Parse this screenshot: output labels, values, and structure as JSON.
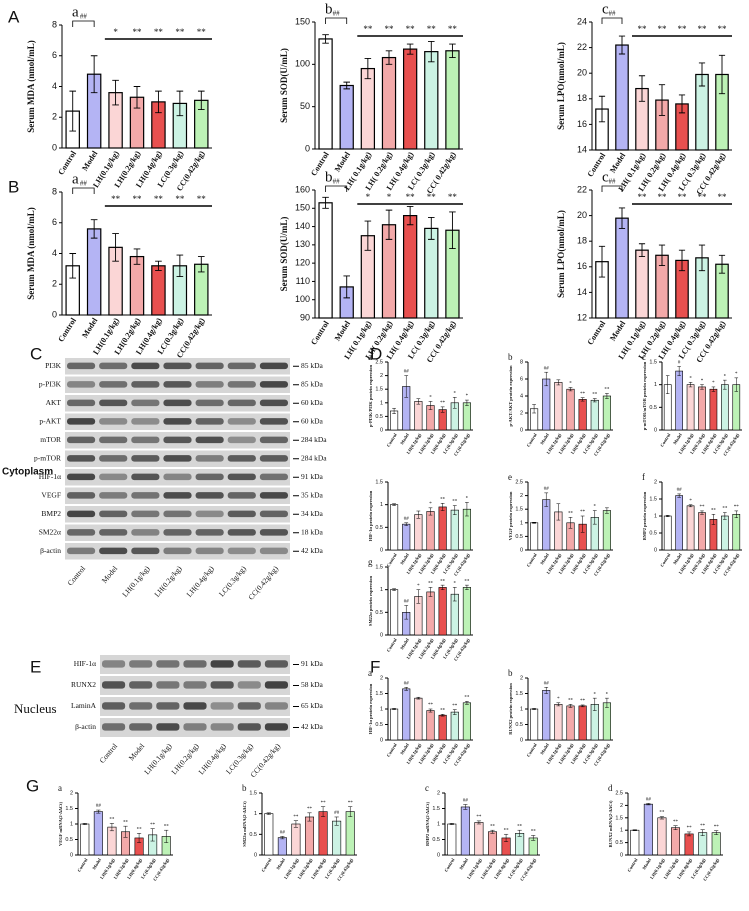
{
  "panel_letters": [
    "A",
    "B",
    "C",
    "D",
    "E",
    "F",
    "G"
  ],
  "bar_colors": [
    "#ffffff",
    "#b4b4f4",
    "#fbd6d6",
    "#f3a9a9",
    "#e8504f",
    "#ccf3e4",
    "#bdf2b6"
  ],
  "blots": [
    {
      "side": "Cytoplasm",
      "rows": [
        {
          "name": "PI3K",
          "kda": "85 kDa"
        },
        {
          "name": "p-PI3K",
          "kda": "85 kDa"
        },
        {
          "name": "AKT",
          "kda": "60 kDa"
        },
        {
          "name": "p-AKT",
          "kda": "60 kDa"
        },
        {
          "name": "mTOR",
          "kda": "284 kDa"
        },
        {
          "name": "p-mTOR",
          "kda": "284 kDa"
        },
        {
          "name": "HIF-1α",
          "kda": "91 kDa"
        },
        {
          "name": "VEGF",
          "kda": "35 kDa"
        },
        {
          "name": "BMP2",
          "kda": "34 kDa"
        },
        {
          "name": "SM22α",
          "kda": "18 kDa"
        },
        {
          "name": "β-actin",
          "kda": "42 kDa"
        }
      ],
      "columns": [
        "Control",
        "Model",
        "LH(0.1g/kg)",
        "LH(0.2g/kg)",
        "LH(0.4g/kg)",
        "LC(0.3g/kg)",
        "CC(0.42g/kg)"
      ]
    },
    {
      "side": "Nucleus",
      "rows": [
        {
          "name": "HIF-1α",
          "kda": "91 kDa"
        },
        {
          "name": "RUNX2",
          "kda": "58 kDa"
        },
        {
          "name": "LaminA",
          "kda": "65 kDa"
        },
        {
          "name": "β-actin",
          "kda": "42 kDa"
        }
      ],
      "columns": [
        "Control",
        "Model",
        "LH(0.1g/kg)",
        "LH(0.2g/kg)",
        "LH(0.4g/kg)",
        "LC(0.3g/kg)",
        "CC(0.42g/kg)"
      ]
    }
  ],
  "chart_data": [
    {
      "type": "bar",
      "label": "a",
      "ylabel": "Serum MDA (nmol/mL)",
      "categories": [
        "Control",
        "Model",
        "LH(0.1g/kg)",
        "LH(0.2g/kg)",
        "LH(0.4g/kg)",
        "LC(0.3g/kg)",
        "CC(0.42g/kg)"
      ],
      "values": [
        2.4,
        4.8,
        3.6,
        3.3,
        3.0,
        2.9,
        3.1
      ],
      "errors": [
        1.3,
        1.2,
        0.8,
        0.7,
        0.7,
        0.8,
        0.6
      ],
      "ylim": [
        0,
        8
      ],
      "yticks": [
        0,
        2,
        4,
        6,
        8
      ],
      "bracket": "##",
      "sig": [
        null,
        null,
        "*",
        "**",
        "**",
        "**",
        "**"
      ]
    },
    {
      "type": "bar",
      "label": "b",
      "ylabel": "Serum SOD(U/mL)",
      "categories": [
        "Control",
        "Model",
        "LH( 0.1g/kg)",
        "LH( 0.2g/kg)",
        "LH( 0.4g/kg)",
        "LC( 0.3g/kg)",
        "CC( 0.42g/kg)"
      ],
      "values": [
        130,
        75,
        95,
        108,
        118,
        115,
        116
      ],
      "errors": [
        5,
        4,
        12,
        8,
        6,
        12,
        8
      ],
      "ylim": [
        0,
        150
      ],
      "yticks": [
        0,
        50,
        100,
        150
      ],
      "bracket": "##",
      "sig": [
        null,
        null,
        "**",
        "**",
        "**",
        "**",
        "**"
      ]
    },
    {
      "type": "bar",
      "label": "c",
      "ylabel": "Serum LPO(nmol/mL)",
      "categories": [
        "Control",
        "Model",
        "LH( 0.1g/kg)",
        "LH( 0.2g/kg)",
        "LH( 0.4g/kg)",
        "LC( 0.3g/kg)",
        "CC( 0.42g/kg)"
      ],
      "values": [
        17.2,
        22.2,
        18.8,
        17.9,
        17.6,
        19.9,
        19.9
      ],
      "errors": [
        1.0,
        0.7,
        1.0,
        1.2,
        0.7,
        0.9,
        1.5
      ],
      "ylim": [
        14,
        24
      ],
      "yticks": [
        14,
        16,
        18,
        20,
        22,
        24
      ],
      "bracket": "##",
      "sig": [
        null,
        null,
        "**",
        "**",
        "**",
        "**",
        "**"
      ]
    },
    {
      "type": "bar",
      "label": "a",
      "ylabel": "Serum MDA (nmol/mL)",
      "categories": [
        "Control",
        "Model",
        "LH(0.1g/kg)",
        "LH(0.2g/kg)",
        "LH(0.4g/kg)",
        "LC(0.3g/kg)",
        "CC(0.42g/kg)"
      ],
      "values": [
        3.2,
        5.6,
        4.4,
        3.8,
        3.2,
        3.2,
        3.3
      ],
      "errors": [
        0.8,
        0.6,
        0.9,
        0.5,
        0.3,
        0.7,
        0.5
      ],
      "ylim": [
        0,
        8
      ],
      "yticks": [
        0,
        2,
        4,
        6,
        8
      ],
      "bracket": "##",
      "sig": [
        null,
        null,
        "**",
        "**",
        "**",
        "**",
        "**"
      ]
    },
    {
      "type": "bar",
      "label": "b",
      "ylabel": "Serum SOD(U/mL)",
      "categories": [
        "Control",
        "Model",
        "LH( 0.1g/kg)",
        "LH( 0.2g/kg)",
        "LH( 0.4g/kg)",
        "LC( 0.3g/kg)",
        "CC( 0.42g/kg)"
      ],
      "values": [
        153,
        107,
        135,
        141,
        146,
        139,
        138
      ],
      "errors": [
        3,
        6,
        8,
        8,
        5,
        6,
        10
      ],
      "ylim": [
        90,
        160
      ],
      "yticks": [
        90,
        100,
        110,
        120,
        130,
        140,
        150,
        160
      ],
      "bracket": "##",
      "sig": [
        null,
        null,
        "*",
        "*",
        "**",
        "**",
        "**"
      ]
    },
    {
      "type": "bar",
      "label": "c",
      "ylabel": "Serum LPO(nmol/mL)",
      "categories": [
        "Control",
        "Model",
        "LH( 0.1g/kg)",
        "LH( 0.2g/kg)",
        "LH( 0.4g/kg)",
        "LC( 0.3g/kg)",
        "CC( 0.42g/kg)"
      ],
      "values": [
        16.4,
        19.8,
        17.3,
        16.9,
        16.5,
        16.7,
        16.2
      ],
      "errors": [
        1.2,
        0.8,
        0.5,
        0.8,
        0.8,
        1.0,
        0.7
      ],
      "ylim": [
        12,
        22
      ],
      "yticks": [
        12,
        14,
        16,
        18,
        20,
        22
      ],
      "bracket": "##",
      "sig": [
        null,
        null,
        "**",
        "**",
        "**",
        "**",
        "**"
      ]
    },
    {
      "type": "bar",
      "label": "a",
      "ylabel": "p-PI3K/PI3K protein expression",
      "categories": [
        "Control",
        "Model",
        "LH(0.1g/kg)",
        "LH(0.2g/kg)",
        "LH(0.4g/kg)",
        "LC(0.3g/kg)",
        "CC(0.42g/kg)"
      ],
      "values": [
        0.7,
        1.6,
        1.05,
        0.9,
        0.75,
        1.0,
        1.0
      ],
      "errors": [
        0.1,
        0.4,
        0.1,
        0.15,
        0.1,
        0.2,
        0.1
      ],
      "ylim": [
        0,
        2.5
      ],
      "yticks": [
        0,
        0.5,
        1,
        1.5,
        2,
        2.5
      ],
      "sig": [
        null,
        "##",
        null,
        "*",
        "**",
        "*",
        "*"
      ]
    },
    {
      "type": "bar",
      "label": "b",
      "ylabel": "p-AKT/AKT protein expression",
      "categories": [
        "Control",
        "Model",
        "LH(0.1g/kg)",
        "LH(0.2g/kg)",
        "LH(0.4g/kg)",
        "LC(0.3g/kg)",
        "CC(0.42g/kg)"
      ],
      "values": [
        2.5,
        6.0,
        5.6,
        4.8,
        3.6,
        3.5,
        4.0
      ],
      "errors": [
        0.5,
        0.8,
        0.3,
        0.2,
        0.2,
        0.2,
        0.3
      ],
      "ylim": [
        0,
        8
      ],
      "yticks": [
        0,
        2,
        4,
        6,
        8
      ],
      "sig": [
        null,
        "##",
        null,
        "*",
        "**",
        "**",
        "**"
      ]
    },
    {
      "type": "bar",
      "label": "c",
      "ylabel": "p-mTOR/mTOR protein expression",
      "categories": [
        "Control",
        "Model",
        "LH(0.1g/kg)",
        "LH(0.2g/kg)",
        "LH(0.4g/kg)",
        "LC(0.3g/kg)",
        "CC(0.42g/kg)"
      ],
      "values": [
        1.0,
        1.3,
        1.0,
        0.95,
        0.9,
        1.0,
        1.0
      ],
      "errors": [
        0.2,
        0.1,
        0.05,
        0.05,
        0.05,
        0.1,
        0.15
      ],
      "ylim": [
        0,
        1.5
      ],
      "yticks": [
        0,
        0.5,
        1,
        1.5
      ],
      "sig": [
        null,
        "#",
        "*",
        "*",
        "*",
        "*",
        "*"
      ]
    },
    {
      "type": "bar",
      "label": null,
      "ylabel": "HIF-1α protein expression",
      "categories": [
        "Control",
        "Model",
        "LH(0.1g/kg)",
        "LH(0.2g/kg)",
        "LH(0.4g/kg)",
        "LC(0.3g/kg)",
        "CC(0.42g/kg)"
      ],
      "values": [
        1.0,
        0.57,
        0.78,
        0.85,
        0.95,
        0.88,
        0.9
      ],
      "errors": [
        0.02,
        0.03,
        0.08,
        0.08,
        0.08,
        0.1,
        0.15
      ],
      "ylim": [
        0,
        1.5
      ],
      "yticks": [
        0,
        0.5,
        1,
        1.5
      ],
      "sig": [
        null,
        "##",
        null,
        "*",
        "**",
        "**",
        "*"
      ]
    },
    {
      "type": "bar",
      "label": "e",
      "ylabel": "VEGF protein expression",
      "categories": [
        "Control",
        "Model",
        "LH(0.1g/kg)",
        "LH(0.2g/kg)",
        "LH(0.4g/kg)",
        "LC(0.3g/kg)",
        "CC(0.42g/kg)"
      ],
      "values": [
        1.0,
        1.85,
        1.4,
        1.0,
        0.95,
        1.2,
        1.45
      ],
      "errors": [
        0.02,
        0.25,
        0.3,
        0.2,
        0.3,
        0.25,
        0.1
      ],
      "ylim": [
        0,
        2.5
      ],
      "yticks": [
        0,
        0.5,
        1,
        1.5,
        2,
        2.5
      ],
      "sig": [
        null,
        "##",
        null,
        "**",
        "**",
        "*",
        null
      ]
    },
    {
      "type": "bar",
      "label": "f",
      "ylabel": "BMP2 protein expression",
      "categories": [
        "Control",
        "Model",
        "LH(0.1g/kg)",
        "LH(0.2g/kg)",
        "LH(0.4g/kg)",
        "LC(0.3g/kg)",
        "CC(0.42g/kg)"
      ],
      "values": [
        1.0,
        1.6,
        1.3,
        1.1,
        0.9,
        1.0,
        1.05
      ],
      "errors": [
        0.02,
        0.05,
        0.03,
        0.05,
        0.15,
        0.1,
        0.1
      ],
      "ylim": [
        0,
        2
      ],
      "yticks": [
        0,
        0.5,
        1,
        1.5,
        2
      ],
      "sig": [
        null,
        "##",
        "*",
        "**",
        "**",
        "**",
        "**"
      ]
    },
    {
      "type": "bar",
      "label": "g",
      "ylabel": "SM22α protein expression",
      "categories": [
        "Control",
        "Model",
        "LH(0.1g/kg)",
        "LH(0.2g/kg)",
        "LH(0.4g/kg)",
        "LC(0.3g/kg)",
        "CC(0.42g/kg)"
      ],
      "values": [
        1.0,
        0.5,
        0.85,
        0.95,
        1.05,
        0.9,
        1.05
      ],
      "errors": [
        0.02,
        0.15,
        0.15,
        0.1,
        0.05,
        0.15,
        0.05
      ],
      "ylim": [
        0,
        1.5
      ],
      "yticks": [
        0,
        0.5,
        1,
        1.5
      ],
      "sig": [
        null,
        "##",
        "*",
        "**",
        "**",
        "*",
        "**"
      ]
    },
    {
      "type": "bar",
      "label": "a",
      "ylabel": "HIF-1α protein expression",
      "categories": [
        "Control",
        "Model",
        "LH(0.1g/kg)",
        "LH(0.2g/kg)",
        "LH(0.4g/kg)",
        "LC(0.3g/kg)",
        "CC(0.42g/kg)"
      ],
      "values": [
        1.0,
        1.65,
        1.35,
        0.95,
        0.8,
        0.9,
        1.2
      ],
      "errors": [
        0.02,
        0.05,
        0.03,
        0.05,
        0.03,
        0.08,
        0.05
      ],
      "ylim": [
        0,
        2
      ],
      "yticks": [
        0,
        0.5,
        1,
        1.5,
        2
      ],
      "sig": [
        null,
        "##",
        null,
        "**",
        "**",
        "**",
        "**"
      ]
    },
    {
      "type": "bar",
      "label": "b",
      "ylabel": "RUNX2 protein expression",
      "categories": [
        "Control",
        "Model",
        "LH(0.1g/kg)",
        "LH(0.2g/kg)",
        "LH(0.4g/kg)",
        "LC(0.3g/kg)",
        "CC(0.42g/kg)"
      ],
      "values": [
        1.0,
        1.6,
        1.15,
        1.1,
        1.1,
        1.15,
        1.2
      ],
      "errors": [
        0.02,
        0.1,
        0.05,
        0.05,
        0.03,
        0.2,
        0.15
      ],
      "ylim": [
        0,
        2
      ],
      "yticks": [
        0,
        0.5,
        1,
        1.5,
        2
      ],
      "sig": [
        null,
        "##",
        "*",
        "**",
        "**",
        "*",
        "*"
      ]
    },
    {
      "type": "bar",
      "label": "a",
      "ylabel": "VEGF mRNA(2-ΔΔCt)",
      "categories": [
        "Control",
        "Model",
        "LH(0.1g/kg)",
        "LH(0.2g/kg)",
        "LH(0.4g/kg)",
        "LC(0.3g/kg)",
        "CC(0.42g/kg)"
      ],
      "values": [
        1.0,
        1.4,
        0.9,
        0.75,
        0.55,
        0.65,
        0.6
      ],
      "errors": [
        0.02,
        0.05,
        0.12,
        0.18,
        0.15,
        0.2,
        0.2
      ],
      "ylim": [
        0,
        2
      ],
      "yticks": [
        0,
        0.5,
        1,
        1.5,
        2
      ],
      "sig": [
        null,
        "##",
        "**",
        "**",
        "**",
        "**",
        "**"
      ]
    },
    {
      "type": "bar",
      "label": "b",
      "ylabel": "SM22α mRNA(2-ΔΔCt)",
      "categories": [
        "Control",
        "Model",
        "LH(0.1g/kg)",
        "LH(0.2g/kg)",
        "LH(0.4g/kg)",
        "LC(0.3g/kg)",
        "CC(0.42g/kg)"
      ],
      "values": [
        1.0,
        0.42,
        0.75,
        0.92,
        1.05,
        0.82,
        1.05
      ],
      "errors": [
        0.02,
        0.03,
        0.08,
        0.1,
        0.12,
        0.1,
        0.12
      ],
      "ylim": [
        0,
        1.5
      ],
      "yticks": [
        0,
        0.5,
        1,
        1.5
      ],
      "sig": [
        null,
        "##",
        "**",
        "**",
        "**",
        "##",
        "**"
      ]
    },
    {
      "type": "bar",
      "label": "c",
      "ylabel": "BMP2 mRNA(2-ΔΔCt)",
      "categories": [
        "Control",
        "Model",
        "LH(0.1g/kg)",
        "LH(0.2g/kg)",
        "LH(0.4g/kg)",
        "LC(0.3g/kg)",
        "CC(0.42g/kg)"
      ],
      "values": [
        1.0,
        1.55,
        1.05,
        0.75,
        0.55,
        0.7,
        0.55
      ],
      "errors": [
        0.02,
        0.08,
        0.05,
        0.05,
        0.12,
        0.1,
        0.08
      ],
      "ylim": [
        0,
        2
      ],
      "yticks": [
        0,
        0.5,
        1,
        1.5,
        2
      ],
      "sig": [
        null,
        "##",
        "**",
        "**",
        "**",
        "**",
        "**"
      ]
    },
    {
      "type": "bar",
      "label": "d",
      "ylabel": "RUNX2 mRNA(2-ΔΔCt)",
      "categories": [
        "Control",
        "Model",
        "LH(0.1g/kg)",
        "LH(0.2g/kg)",
        "LH(0.4g/kg)",
        "LC(0.3g/kg)",
        "CC(0.42g/kg)"
      ],
      "values": [
        1.0,
        2.05,
        1.5,
        1.1,
        0.85,
        0.9,
        0.9
      ],
      "errors": [
        0.02,
        0.03,
        0.05,
        0.08,
        0.08,
        0.12,
        0.08
      ],
      "ylim": [
        0,
        2.5
      ],
      "yticks": [
        0,
        0.5,
        1,
        1.5,
        2,
        2.5
      ],
      "sig": [
        null,
        "##",
        "**",
        "**",
        "**",
        "**",
        "**"
      ]
    }
  ]
}
